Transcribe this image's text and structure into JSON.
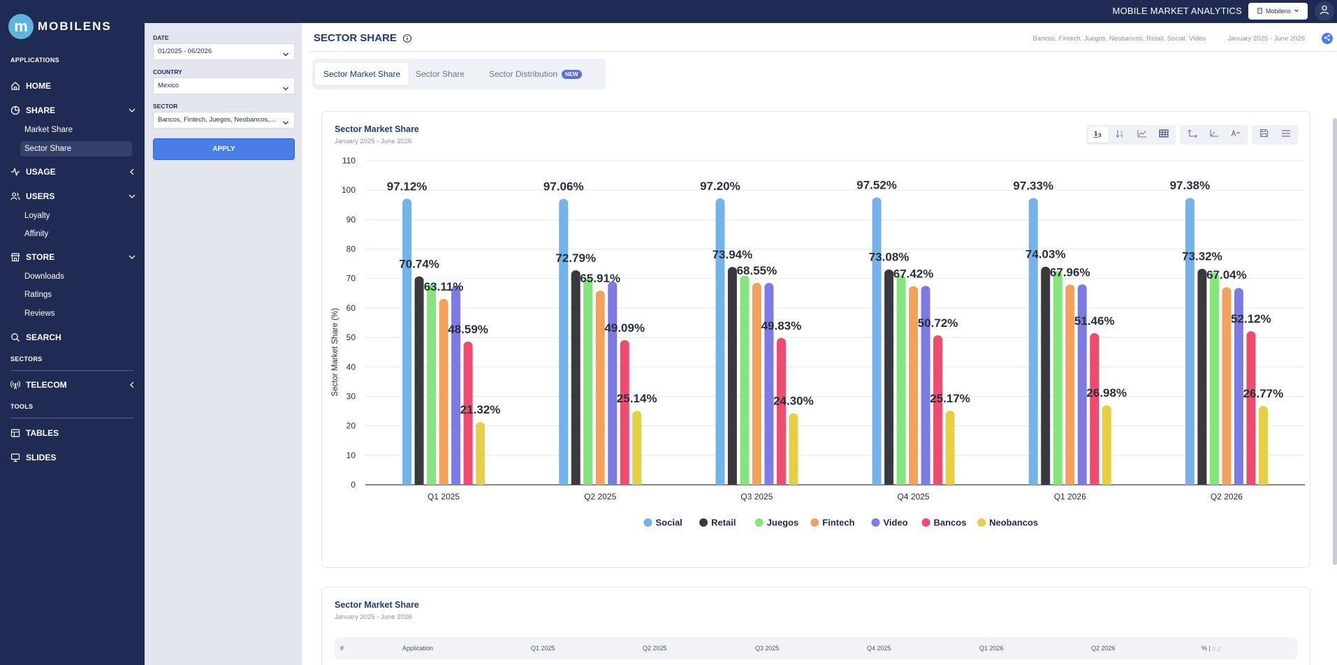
{
  "topbar": {
    "title": "MOBILE MARKET ANALYTICS",
    "account": "Mobilens"
  },
  "logo": {
    "letter": "m",
    "word": "MOBILENS"
  },
  "sidebar": {
    "sections": {
      "applications": "APPLICATIONS",
      "sectors": "SECTORS",
      "tools": "TOOLS"
    },
    "home": "HOME",
    "share": "SHARE",
    "share_items": [
      "Market Share",
      "Sector Share"
    ],
    "usage": "USAGE",
    "users": "USERS",
    "users_items": [
      "Loyalty",
      "Affinity"
    ],
    "store": "STORE",
    "store_items": [
      "Downloads",
      "Ratings",
      "Reviews"
    ],
    "search": "SEARCH",
    "telecom": "TELECOM",
    "tables": "TABLES",
    "slides": "SLIDES"
  },
  "filters": {
    "date_label": "DATE",
    "date_value": "01/2025 - 06/2026",
    "country_label": "COUNTRY",
    "country_value": "Mexico",
    "sector_label": "SECTOR",
    "sector_value": "Bancos, Fintech, Juegos, Neobancos, Retail, Social, Video",
    "apply": "APPLY"
  },
  "header": {
    "title": "SECTOR SHARE",
    "sectors": "Bancos, Fintech, Juegos, Neobancos, Retail, Social, Video",
    "period": "January 2025 - June 2026"
  },
  "tabs": [
    {
      "label": "Sector Market Share"
    },
    {
      "label": "Sector Share"
    },
    {
      "label": "Sector Distribution",
      "badge": "NEW"
    }
  ],
  "chart_card": {
    "title": "Sector Market Share",
    "subtitle": "January 2025 - June 2026"
  },
  "table_card": {
    "title": "Sector Market Share",
    "subtitle": "January 2025 - June 2026",
    "columns": [
      "#",
      "Application",
      "Q1 2025",
      "Q2 2025",
      "Q3 2025",
      "Q4 2025",
      "Q1 2026",
      "Q2 2026",
      "% |",
      "p.p"
    ]
  },
  "colors": {
    "Social": "#74b3ea",
    "Retail": "#3a3a3e",
    "Juegos": "#85e57c",
    "Fintech": "#f4a25a",
    "Video": "#7d7ae4",
    "Bancos": "#ec4d6e",
    "Neobancos": "#e4cf47"
  },
  "chart_data": {
    "type": "bar",
    "title": "",
    "ylabel": "Sector Market Share (%)",
    "ylim": [
      0,
      110
    ],
    "yticks": [
      0,
      10,
      20,
      30,
      40,
      50,
      60,
      70,
      80,
      90,
      100,
      110
    ],
    "categories": [
      "Q1 2025",
      "Q2 2025",
      "Q3 2025",
      "Q4 2025",
      "Q1 2026",
      "Q2 2026"
    ],
    "series": [
      {
        "name": "Social",
        "values": [
          97.12,
          97.06,
          97.2,
          97.52,
          97.33,
          97.38
        ],
        "labels": [
          "97.12%",
          "97.06%",
          "97.20%",
          "97.52%",
          "97.33%",
          "97.38%"
        ]
      },
      {
        "name": "Retail",
        "values": [
          70.74,
          72.79,
          73.94,
          73.08,
          74.03,
          73.32
        ],
        "labels": [
          "70.74%",
          "72.79%",
          "73.94%",
          "73.08%",
          "74.03%",
          "73.32%"
        ]
      },
      {
        "name": "Juegos",
        "values": [
          68.0,
          70.0,
          71.0,
          71.0,
          72.5,
          72.0
        ],
        "labels": []
      },
      {
        "name": "Fintech",
        "values": [
          63.11,
          65.91,
          68.55,
          67.42,
          67.96,
          67.04
        ],
        "labels": [
          "63.11%",
          "65.91%",
          "68.55%",
          "67.42%",
          "67.96%",
          "67.04%"
        ]
      },
      {
        "name": "Video",
        "values": [
          67.5,
          69.0,
          68.5,
          67.5,
          68.0,
          66.8
        ],
        "labels": []
      },
      {
        "name": "Bancos",
        "values": [
          48.59,
          49.09,
          49.83,
          50.72,
          51.46,
          52.12
        ],
        "labels": [
          "48.59%",
          "49.09%",
          "49.83%",
          "50.72%",
          "51.46%",
          "52.12%"
        ]
      },
      {
        "name": "Neobancos",
        "values": [
          21.32,
          25.14,
          24.3,
          25.17,
          26.98,
          26.77
        ],
        "labels": [
          "21.32%",
          "25.14%",
          "24.30%",
          "25.17%",
          "26.98%",
          "26.77%"
        ]
      }
    ],
    "legend": "bottom-center",
    "grid": true
  }
}
